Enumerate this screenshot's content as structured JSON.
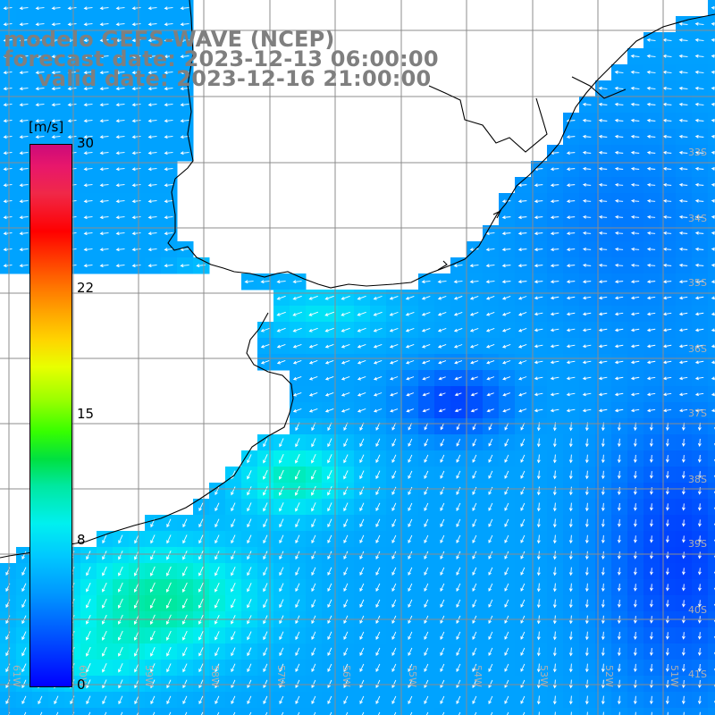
{
  "title": {
    "line1": "modelo GEFS-WAVE (NCEP)",
    "line2": "forecast date: 2023-12-13 06:00:00",
    "line3": "valid date: 2023-12-16 21:00:00"
  },
  "colorbar": {
    "unit": "[m/s]",
    "ticks": [
      {
        "label": "30",
        "value": 30
      },
      {
        "label": "22",
        "value": 22
      },
      {
        "label": "15",
        "value": 15
      },
      {
        "label": "8",
        "value": 8
      },
      {
        "label": "0",
        "value": 0
      }
    ],
    "min": 0,
    "max": 30
  },
  "map": {
    "lat_labels": [
      "33S",
      "34S",
      "35S",
      "36S",
      "37S",
      "38S",
      "39S",
      "40S",
      "41S"
    ],
    "lon_labels": [
      "61W",
      "60W",
      "59W",
      "58W",
      "57W",
      "56W",
      "55W",
      "54W",
      "53W",
      "52W",
      "51W"
    ],
    "colors": {
      "land": "#ffffff",
      "grid": "#8c8c8c",
      "coast": "#000000",
      "arrow": "#ffffff"
    },
    "wind_field_note": "colored wind speed cells with white direction arrows"
  }
}
